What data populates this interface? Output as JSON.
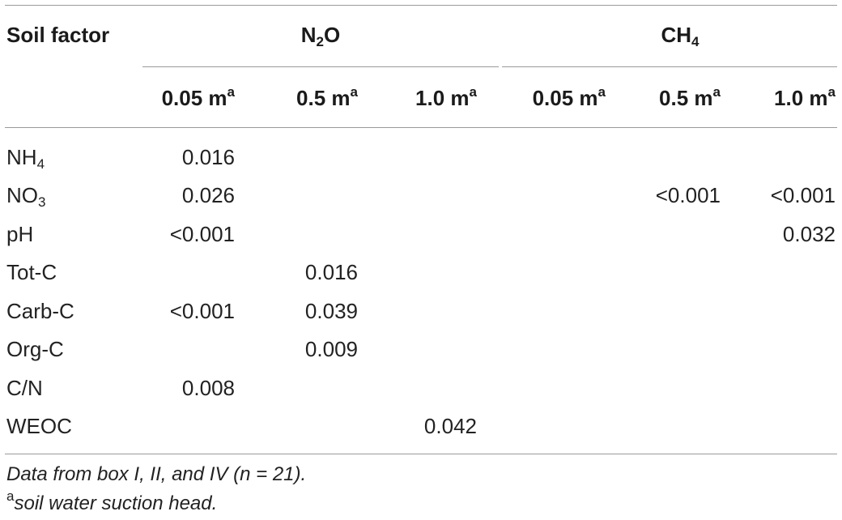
{
  "table": {
    "header": {
      "row_label": "Soil factor",
      "group1": {
        "base": "N",
        "sub": "2",
        "tail": "O"
      },
      "group2": {
        "base": "CH",
        "sub": "4"
      },
      "depths": [
        "0.05 m",
        "0.5 m",
        "1.0 m",
        "0.05 m",
        "0.5 m",
        "1.0 m"
      ],
      "depth_superscript": "a"
    },
    "rows": [
      {
        "label": "NH",
        "sub": "4",
        "values": [
          "0.016",
          "",
          "",
          "",
          "",
          ""
        ]
      },
      {
        "label": "NO",
        "sub": "3",
        "values": [
          "0.026",
          "",
          "",
          "",
          "<0.001",
          "<0.001"
        ]
      },
      {
        "label": "pH",
        "sub": "",
        "values": [
          "<0.001",
          "",
          "",
          "",
          "",
          "0.032"
        ]
      },
      {
        "label": "Tot-C",
        "sub": "",
        "values": [
          "",
          "0.016",
          "",
          "",
          "",
          ""
        ]
      },
      {
        "label": "Carb-C",
        "sub": "",
        "values": [
          "<0.001",
          "0.039",
          "",
          "",
          "",
          ""
        ]
      },
      {
        "label": "Org-C",
        "sub": "",
        "values": [
          "",
          "0.009",
          "",
          "",
          "",
          ""
        ]
      },
      {
        "label": "C/N",
        "sub": "",
        "values": [
          "0.008",
          "",
          "",
          "",
          "",
          ""
        ]
      },
      {
        "label": "WEOC",
        "sub": "",
        "values": [
          "",
          "",
          "0.042",
          "",
          "",
          ""
        ]
      }
    ]
  },
  "footnotes": {
    "data_note": "Data from box I, II, and IV (n = 21).",
    "sup_marker": "a",
    "sup_note": "soil water suction head."
  }
}
